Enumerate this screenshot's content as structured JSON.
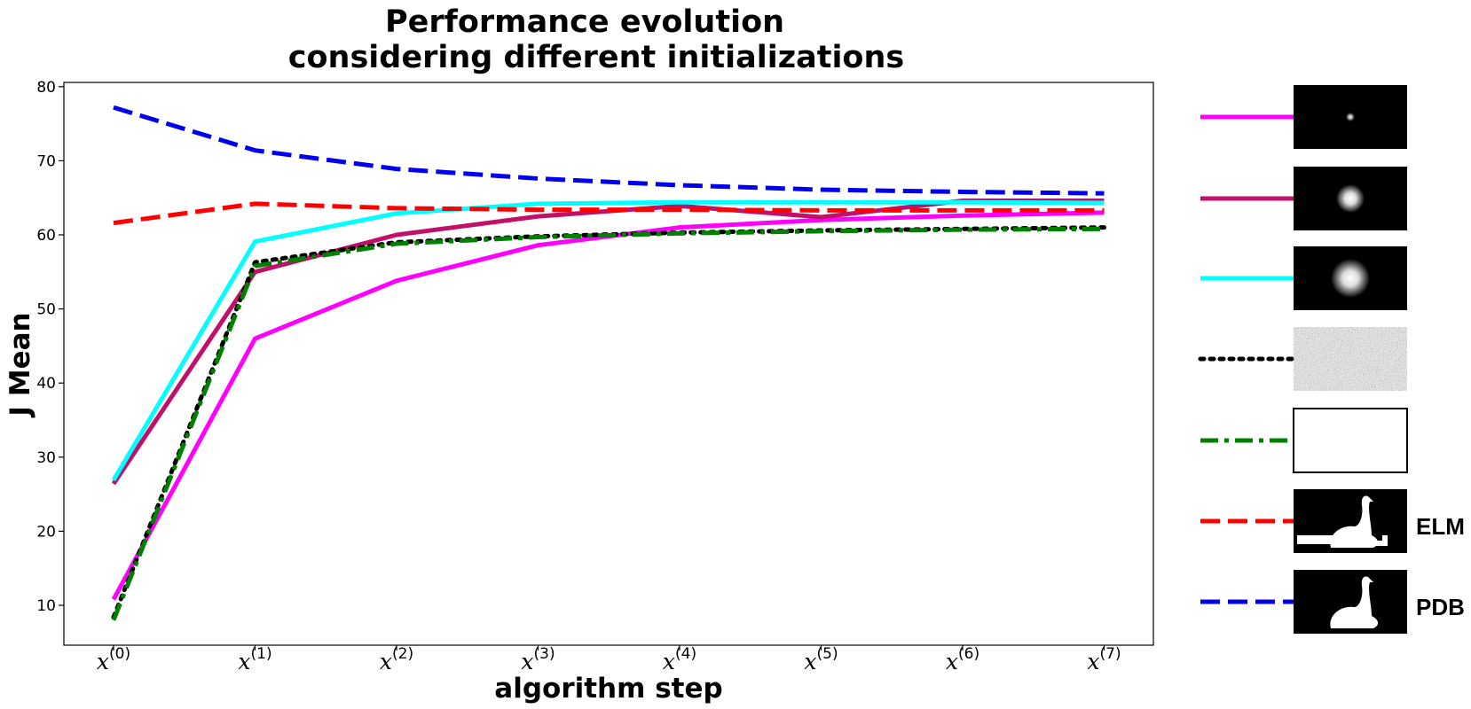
{
  "chart_data": {
    "type": "line",
    "title_lines": [
      "Performance evolution",
      "considering different initializations"
    ],
    "xlabel": "algorithm step",
    "ylabel": "J Mean",
    "ylim": [
      5,
      80.5
    ],
    "yticks": [
      "10",
      "20",
      "30",
      "40",
      "50",
      "60",
      "70",
      "80"
    ],
    "x_steps": [
      0,
      1,
      2,
      3,
      4,
      5,
      6,
      7
    ],
    "xtick_base": "x",
    "xtick_sup": [
      "(0)",
      "(1)",
      "(2)",
      "(3)",
      "(4)",
      "(5)",
      "(6)",
      "(7)"
    ],
    "grid": false,
    "legend_position": "right",
    "series": [
      {
        "color": "#ff00ff",
        "dash": "solid",
        "legend_image": "small-gaussian-blob",
        "values": [
          10.8,
          46.0,
          53.8,
          58.6,
          61.0,
          62.0,
          62.6,
          63.0
        ]
      },
      {
        "color": "#c0106a",
        "dash": "solid",
        "legend_image": "medium-gaussian-blob",
        "values": [
          26.4,
          55.0,
          60.0,
          62.5,
          63.9,
          62.4,
          64.6,
          64.6
        ]
      },
      {
        "color": "#00ffff",
        "dash": "solid",
        "legend_image": "large-gaussian-blob",
        "values": [
          26.9,
          59.1,
          62.9,
          64.2,
          64.4,
          64.4,
          64.4,
          64.3
        ]
      },
      {
        "color": "#000000",
        "dash": "dotted",
        "legend_image": "random-noise",
        "values": [
          8.4,
          56.3,
          59.0,
          59.8,
          60.3,
          60.6,
          60.8,
          61.0
        ]
      },
      {
        "color": "#008000",
        "dash": "dashdot",
        "legend_image": "blank-white",
        "values": [
          8.0,
          55.8,
          58.8,
          59.7,
          60.2,
          60.5,
          60.7,
          60.8
        ]
      },
      {
        "color": "#ff0000",
        "dash": "dashed",
        "legend_image": "swan-mask-elm",
        "name": "ELM",
        "values": [
          61.6,
          64.2,
          63.6,
          63.4,
          63.4,
          63.3,
          63.3,
          63.3
        ]
      },
      {
        "color": "#0000ee",
        "dash": "dashed",
        "legend_image": "swan-mask-pdb",
        "name": "PDB",
        "values": [
          77.2,
          71.4,
          68.9,
          67.6,
          66.7,
          66.1,
          65.8,
          65.6
        ]
      }
    ]
  }
}
